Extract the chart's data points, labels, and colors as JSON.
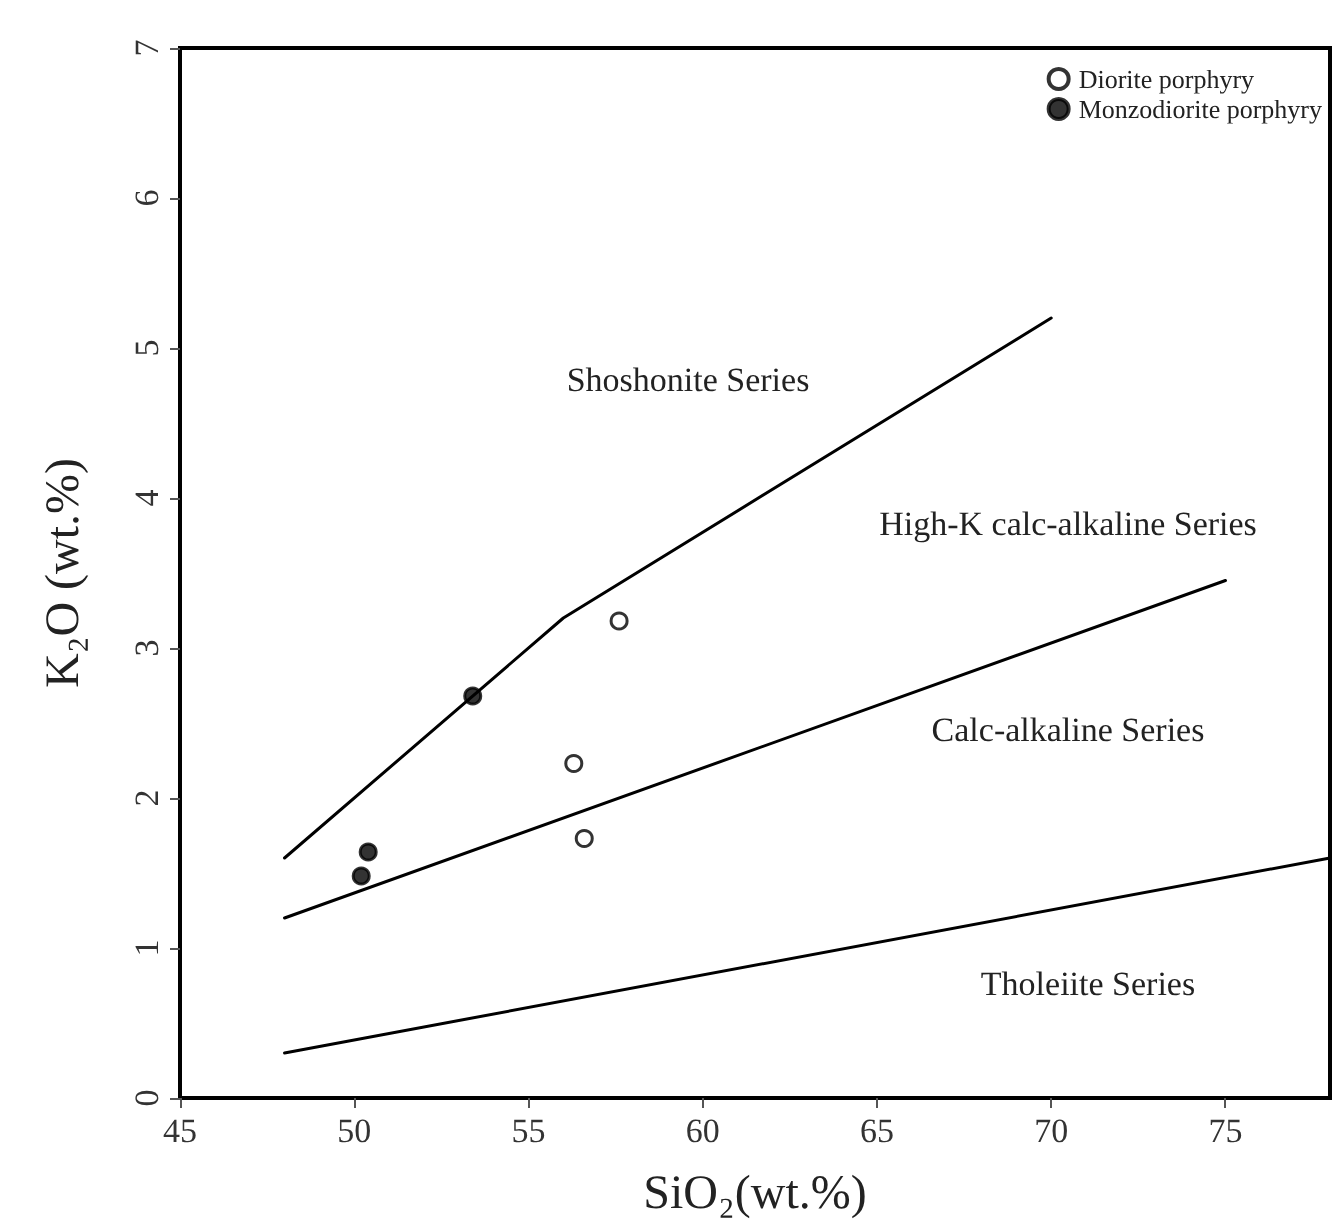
{
  "chart_data": {
    "type": "scatter",
    "xlabel": "SiO₂(wt.%)",
    "ylabel": "K₂O (wt.%)",
    "xlim": [
      45,
      78
    ],
    "xticks": [
      45,
      50,
      55,
      60,
      65,
      70,
      75
    ],
    "ylim": [
      0,
      7
    ],
    "yticks": [
      0,
      1,
      2,
      3,
      4,
      5,
      6,
      7
    ],
    "grid": false,
    "legend": "top right",
    "marker": "circle",
    "series": [
      {
        "name": "Diorite porphyry",
        "color": "#ffffff",
        "x": [
          57.6,
          56.3,
          56.6
        ],
        "values": [
          3.18,
          2.23,
          1.73
        ]
      },
      {
        "name": "Monzodiorite porphyry",
        "color": "#000000",
        "x": [
          53.4,
          50.4,
          50.2
        ],
        "values": [
          2.68,
          1.64,
          1.48
        ]
      },
      {
        "type": "line",
        "color": "#000000",
        "marker": "none",
        "x": [
          48,
          56,
          70
        ],
        "values": [
          1.6,
          3.2,
          5.2
        ]
      },
      {
        "type": "line",
        "color": "#000000",
        "marker": "none",
        "x": [
          48,
          75
        ],
        "values": [
          1.2,
          3.45
        ]
      },
      {
        "type": "line",
        "color": "#000000",
        "marker": "none",
        "x": [
          48,
          78
        ],
        "values": [
          0.3,
          1.6
        ]
      }
    ],
    "annotations": [
      "Shoshonite Series",
      "High-K calc-alkaline Series",
      "Calc-alkaline Series",
      "Tholeiite Series"
    ]
  }
}
